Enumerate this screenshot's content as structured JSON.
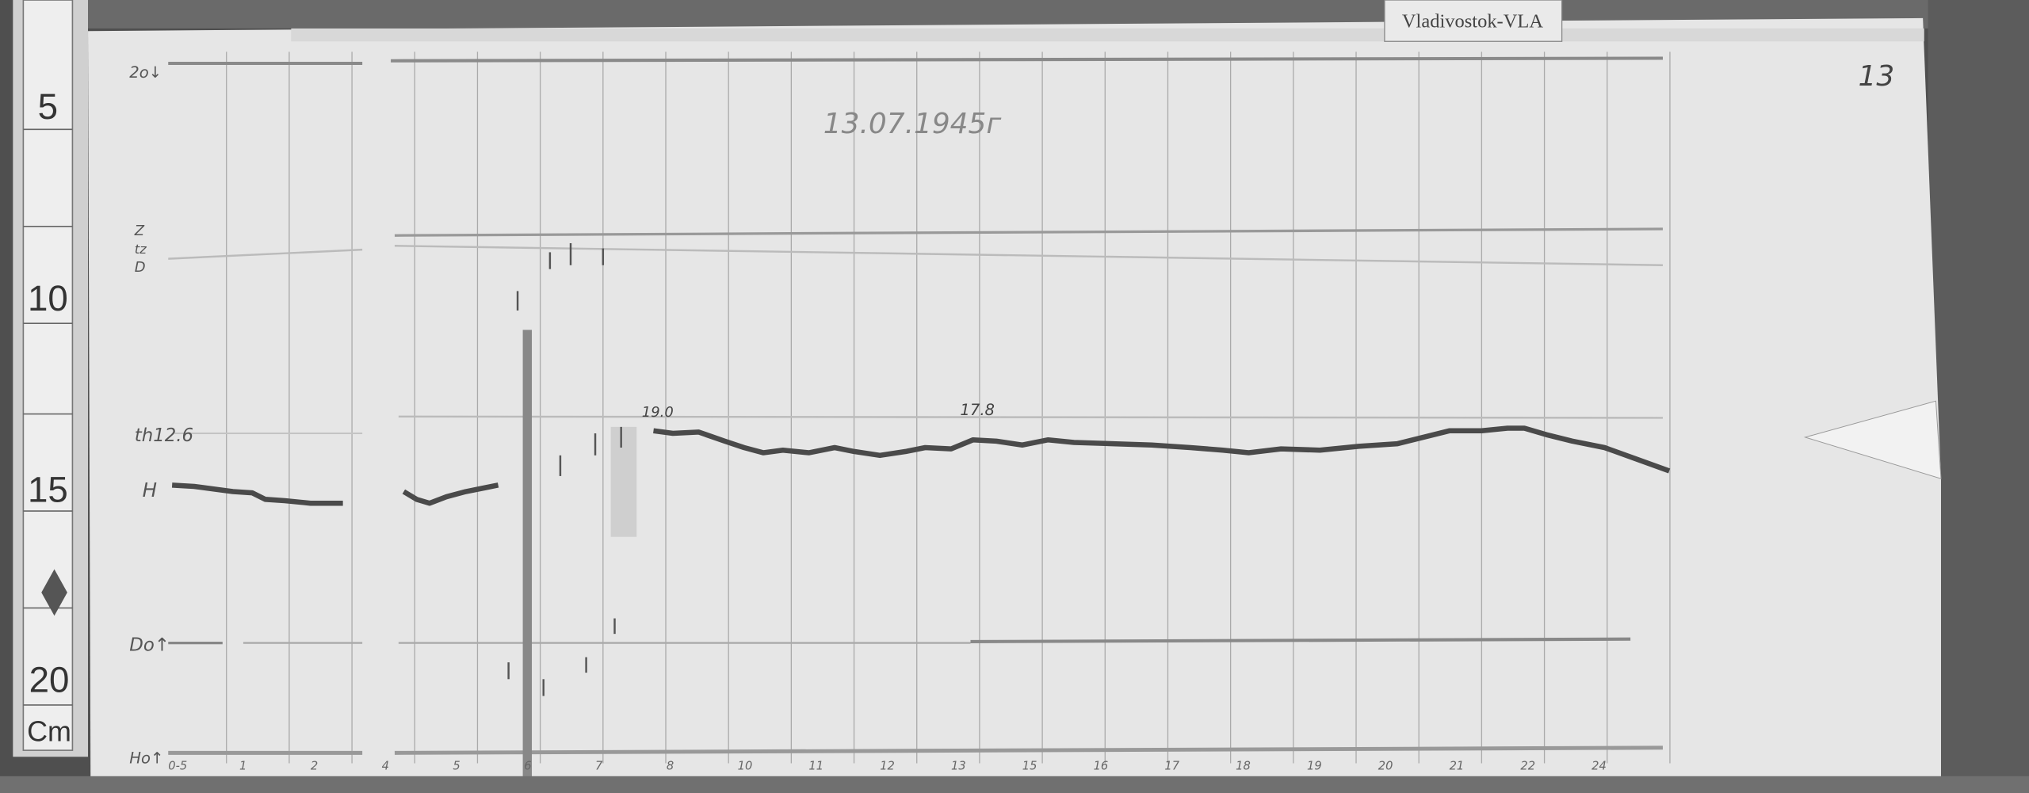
{
  "station_label": "Vladivostok-VLA",
  "sheet_number": "13",
  "date": "13.07.1945г",
  "ruler": {
    "marks": [
      "5",
      "10",
      "15",
      "20"
    ],
    "unit": "Cm"
  },
  "channel_labels": {
    "top": "2o↓",
    "z_group": [
      "Z",
      "tz",
      "D"
    ],
    "th": "th12.6",
    "h": "H",
    "d": "Do↑",
    "bottom": "Ho↑"
  },
  "trace_annotations": [
    "19.0",
    "17.8"
  ],
  "hour_marks": [
    "0-5",
    "1",
    "2",
    "4",
    "5",
    "6",
    "7",
    "8",
    "10",
    "11",
    "12",
    "13",
    "15",
    "16",
    "17",
    "18",
    "19",
    "20",
    "21",
    "22",
    "24"
  ],
  "colors": {
    "paper": "#e4e4e4",
    "trace": "#4a4a4a",
    "background": "#4f4f4f"
  }
}
